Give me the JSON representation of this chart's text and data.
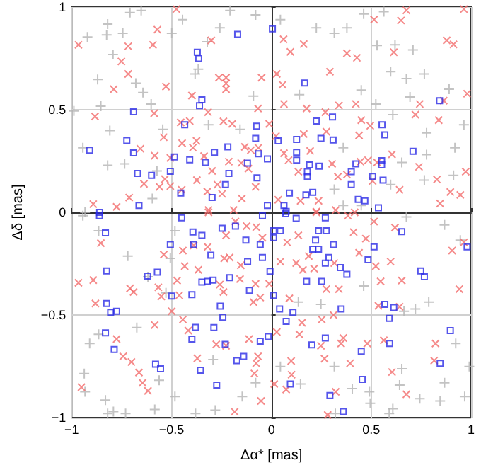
{
  "chart_data": {
    "type": "scatter",
    "xlabel": "Δα* [mas]",
    "ylabel": "Δδ [mas]",
    "xlim": [
      -1,
      1
    ],
    "ylim": [
      -1,
      1
    ],
    "xticks": [
      {
        "value": -1,
        "label": "−1"
      },
      {
        "value": -0.5,
        "label": "−0.5"
      },
      0,
      0.5,
      1
    ],
    "yticks": [
      {
        "value": -1,
        "label": "−1"
      },
      {
        "value": -0.5,
        "label": "−0.5"
      },
      0,
      0.5,
      1
    ],
    "grid": true,
    "series": [
      {
        "color": "#b4b4b4",
        "marker": "plus",
        "x": [
          -0.708,
          -0.652,
          -0.82,
          -0.921,
          -0.825,
          -0.744,
          -0.793,
          -0.87,
          -0.679,
          -0.643,
          -0.602,
          -0.854,
          -0.989,
          -0.499,
          -0.445,
          -0.366,
          -0.382,
          -0.321,
          -0.258,
          -0.207,
          -0.079,
          -0.09,
          -0.809,
          -0.944,
          -0.82,
          -0.735,
          -0.573,
          -0.544,
          -0.157,
          -0.315,
          -0.596,
          -0.933,
          0.045,
          0.225,
          0.315,
          0.378,
          0.462,
          0.563,
          0.529,
          0.619,
          0.709,
          0.597,
          0.676,
          0.766,
          0.89,
          0.14,
          0.45,
          0.694,
          0.523,
          0.608,
          0.964,
          0.777,
          0.653,
          0.36,
          0.919,
          0.777,
          0.766,
          0.912,
          0.597,
          0.315,
          0.45,
          0.36,
          -0.944,
          -0.865,
          -0.719,
          -0.618,
          -0.528,
          -0.483,
          -0.506,
          -0.674,
          -0.865,
          -0.91,
          -0.937,
          -0.933,
          -0.831,
          -0.791,
          -0.584,
          -0.483,
          -0.562,
          -0.292,
          -0.146,
          -0.079,
          -0.281,
          0.676,
          0.867,
          0.946,
          0.788,
          0.721,
          0.664,
          0.462,
          0.248,
          0.135,
          0.045,
          0.146,
          0.315,
          0.405,
          0.495,
          0.608,
          0.642,
          0.653,
          0.743,
          0.845,
          0.968,
          0.867,
          0.991,
          0.491,
          0.923,
          -0.82,
          -0.73,
          -0.38,
          0.32,
          0.59
        ],
        "values": [
          0.973,
          0.984,
          0.917,
          0.854,
          0.865,
          0.872,
          0.769,
          0.647,
          0.629,
          0.584,
          0.528,
          0.517,
          0.494,
          0.872,
          0.939,
          0.697,
          0.674,
          0.831,
          0.899,
          0.984,
          0.962,
          0.566,
          0.398,
          0.315,
          0.229,
          0.236,
          0.202,
          0.404,
          0.404,
          0.427,
          0.067,
          0,
          0.939,
          0.899,
          0.872,
          0.899,
          0.966,
          0.978,
          0.813,
          0.816,
          0.791,
          0.685,
          0.652,
          0.674,
          0.6,
          0.573,
          0.596,
          0.562,
          0.528,
          0.476,
          0.427,
          0.387,
          0.243,
          0.315,
          0.315,
          0.281,
          0.157,
          0.18,
          0.135,
          0.112,
          0.034,
          0.034,
          -0.016,
          -0.09,
          -0.213,
          -0.314,
          -0.392,
          -0.09,
          -0.224,
          -0.561,
          -0.594,
          -0.639,
          -0.785,
          -0.874,
          -0.915,
          -0.971,
          -0.96,
          -0.897,
          -0.818,
          -0.717,
          -0.897,
          -0.83,
          -0.964,
          -0.022,
          -0.061,
          -0.135,
          -0.437,
          -0.471,
          -0.482,
          -0.359,
          -0.448,
          -0.437,
          -0.751,
          -0.836,
          -0.751,
          -0.859,
          -0.93,
          -0.957,
          -0.841,
          -0.762,
          -0.908,
          -0.919,
          -0.897,
          -0.83,
          -0.751,
          -0.874,
          -0.639,
          -0.98,
          -0.98,
          -0.98,
          -0.98,
          -0.98
        ]
      },
      {
        "color": "#f26d6d",
        "marker": "cross",
        "x": [
          -0.476,
          -0.571,
          -0.966,
          -0.717,
          -0.593,
          -0.751,
          -0.717,
          -0.789,
          -0.528,
          -0.301,
          -0.227,
          -0.227,
          -0.227,
          -0.263,
          -0.049,
          -0.398,
          -0.067,
          -0.883,
          -0.587,
          -0.317,
          -0.454,
          -0.409,
          -0.24,
          -0.196,
          -0.011,
          -0.539,
          -0.447,
          -0.375,
          -0.656,
          -0.584,
          -0.393,
          -0.506,
          -0.337,
          -0.213,
          -0.151,
          -0.133,
          -0.103,
          -0.065,
          -0.115,
          -0.297,
          -0.373,
          -0.638,
          -0.56,
          -0.533,
          -0.506,
          -0.712,
          -0.449,
          -0.27,
          -0.321,
          -0.247,
          -0.148,
          -0.079,
          -0.892,
          -0.775,
          -0.315,
          -0.189,
          0.676,
          0.964,
          0.514,
          0.649,
          0.061,
          0.162,
          0.095,
          0.378,
          0.428,
          0.613,
          0.878,
          0.912,
          0.027,
          0.293,
          0.056,
          0.98,
          0.063,
          0.176,
          0.338,
          0.423,
          0.743,
          0.863,
          0.27,
          0.45,
          0.495,
          0.721,
          0.838,
          0.439,
          0.275,
          0.162,
          0.023,
          0.604,
          0.194,
          0.063,
          0.086,
          0.446,
          0.484,
          0.529,
          0.304,
          0.378,
          0.333,
          0.135,
          0.739,
          0.507,
          0.829,
          0.973,
          0.642,
          0.896,
          0.946,
          0.845,
          0.034,
          0.146,
          0.236,
          0.322,
          0.417,
          0.225,
          -0.854,
          -0.966,
          -0.892,
          -0.881,
          -0.708,
          -0.69,
          -0.566,
          -0.551,
          -0.539,
          -0.443,
          -0.434,
          -0.389,
          -0.319,
          -0.366,
          -0.472,
          -0.461,
          -0.499,
          -0.443,
          -0.584,
          -0.416,
          -0.236,
          -0.209,
          -0.153,
          -0.258,
          -0.24,
          -0.157,
          -0.079,
          -0.09,
          -0.056,
          -0.18,
          -0.124,
          -0.076,
          -0.045,
          -0.227,
          -0.315,
          -0.775,
          -0.742,
          -0.701,
          -0.663,
          -0.645,
          -0.618,
          -0.951,
          -0.276,
          -0.227,
          -0.371,
          -0.112,
          -0.067,
          -0.076,
          -0.085,
          -0.052,
          -0.184,
          -0.011,
          0.225,
          0.383,
          0.514,
          0.619,
          0.412,
          0.473,
          0.079,
          0.135,
          0.187,
          0.124,
          0.045,
          0.158,
          0.214,
          0.315,
          0.439,
          0.523,
          0.547,
          0.597,
          0.653,
          0.905,
          0.964,
          0.941,
          0.09,
          0.275,
          0.338,
          0.536,
          0.642,
          0.153,
          0.252,
          0.311,
          0.027,
          0.14,
          0.248,
          0.349,
          0.36,
          0.48,
          0.563,
          0.822,
          0.099,
          0.266,
          0.394,
          0.604,
          0.815,
          0.101,
          0.074,
          0.322,
          0.676,
          0.282,
          0.014
        ],
        "values": [
          0.99,
          0.89,
          0.816,
          0.809,
          0.816,
          0.735,
          0.674,
          0.6,
          0.613,
          0.838,
          0.656,
          0.629,
          0.6,
          0.656,
          0.656,
          0.569,
          0.506,
          0.467,
          0.483,
          0.488,
          0.438,
          0.445,
          0.443,
          0.431,
          0.431,
          0.366,
          0.337,
          0.348,
          0.31,
          0.276,
          0.315,
          0.265,
          0.274,
          0.247,
          0.24,
          0.319,
          0.303,
          0.315,
          0.213,
          0.202,
          0.157,
          0.139,
          0.124,
          0.162,
          0.128,
          0.072,
          0.11,
          0.135,
          0.101,
          0.09,
          0.067,
          0.124,
          0.04,
          0.027,
          0.011,
          0.011,
          0.984,
          0.99,
          0.939,
          0.935,
          0.843,
          0.82,
          0.782,
          0.775,
          0.753,
          0.78,
          0.838,
          0.818,
          0.674,
          0.685,
          0.622,
          0.578,
          0.528,
          0.506,
          0.521,
          0.528,
          0.528,
          0.544,
          0.488,
          0.449,
          0.422,
          0.476,
          0.449,
          0.375,
          0.393,
          0.382,
          0.371,
          0.283,
          0.299,
          0.288,
          0.254,
          0.247,
          0.254,
          0.243,
          0.236,
          0.184,
          0.173,
          0.198,
          0.222,
          0.153,
          0.16,
          0.198,
          0.11,
          0.099,
          0.085,
          0.043,
          0.061,
          0.056,
          0.056,
          0.011,
          0,
          0.004,
          -0.15,
          -0.343,
          -0.33,
          -0.444,
          -0.37,
          -0.388,
          -0.365,
          -0.41,
          -0.206,
          -0.186,
          -0.262,
          -0.161,
          -0.168,
          -0.28,
          -0.332,
          -0.404,
          -0.482,
          -0.522,
          -0.549,
          -0.576,
          -0.224,
          -0.22,
          -0.258,
          -0.352,
          -0.388,
          -0.325,
          -0.348,
          -0.437,
          -0.415,
          -0.045,
          -0.067,
          -0.072,
          -0.123,
          -0.112,
          0,
          -0.617,
          -0.702,
          -0.729,
          -0.78,
          -0.83,
          -0.87,
          -0.852,
          -0.643,
          -0.65,
          -0.711,
          -0.617,
          -0.702,
          -0.735,
          -0.785,
          -0.919,
          -0.971,
          -0.348,
          0,
          -0.016,
          -0.045,
          -0.074,
          -0.096,
          -0.128,
          -0.146,
          -0.112,
          -0.213,
          -0.247,
          -0.24,
          -0.28,
          -0.274,
          -0.247,
          -0.197,
          -0.262,
          -0.336,
          -0.24,
          -0.332,
          -0.186,
          -0.146,
          -0.374,
          -0.419,
          -0.374,
          -0.374,
          -0.455,
          -0.46,
          -0.538,
          -0.522,
          -0.5,
          -0.583,
          -0.594,
          -0.65,
          -0.639,
          -0.612,
          -0.639,
          -0.623,
          -0.639,
          -0.724,
          -0.713,
          -0.735,
          -0.778,
          -0.722,
          -0.791,
          -0.863,
          -0.874,
          -0.886,
          -0.987,
          -0.836
        ]
      },
      {
        "color": "#2a2ae6",
        "marker": "square",
        "x": [
          -0.169,
          -0.371,
          -0.364,
          -0.348,
          -0.36,
          -0.69,
          -0.434,
          -0.91,
          -0.724,
          -0.69,
          -0.485,
          -0.409,
          -0.33,
          -0.285,
          -0.218,
          -0.074,
          -0.079,
          -0.065,
          -0.12,
          -0.02,
          -0.67,
          -0.6,
          -0.506,
          -0.213,
          -0.23,
          -0.297,
          -0.454,
          -0.663,
          -0.072,
          -0.02,
          -0.86,
          0.005,
          0.167,
          0.842,
          0.225,
          0.306,
          0.554,
          0.568,
          0.126,
          0.034,
          0.248,
          0.309,
          0.126,
          0.126,
          0.709,
          0.191,
          0.239,
          0.18,
          0.18,
          0.552,
          0.552,
          0.423,
          0.4,
          0.507,
          0.559,
          0.4,
          0.09,
          0.173,
          0.207,
          0.063,
          0.435,
          0.468,
          0.536,
          0.074,
          -0.861,
          -0.831,
          -0.449,
          -0.393,
          -0.348,
          -0.247,
          -0.18,
          -0.045,
          -0.506,
          -0.389,
          -0.303,
          -0.128,
          -0.056,
          -0.045,
          -0.119,
          -0.825,
          -0.62,
          -0.571,
          -0.321,
          -0.292,
          -0.348,
          -0.209,
          -0.11,
          -0.007,
          -0.499,
          -0.398,
          -0.825,
          -0.805,
          -0.775,
          -0.256,
          -0.243,
          -0.38,
          -0.831,
          -0.787,
          -0.398,
          -0.288,
          -0.231,
          -0.173,
          -0.139,
          -0.056,
          -0.58,
          -0.555,
          -0.355,
          -0.274,
          -0.016,
          0.072,
          0.124,
          0.27,
          0.011,
          0.045,
          0.011,
          0.236,
          0.275,
          0.221,
          0.311,
          0.236,
          0.207,
          0.288,
          0.27,
          0.345,
          0.378,
          0.514,
          0.484,
          0.176,
          0.252,
          0.653,
          0.748,
          0.766,
          0.98,
          0.011,
          0.041,
          0.108,
          0.349,
          0.568,
          0.613,
          0.59,
          0.074,
          0.27,
          0.203,
          0.45,
          0.592,
          0.845,
          0.896,
          0.455,
          0.095,
          0.293,
          0.36
        ],
        "values": [
          0.867,
          0.78,
          0.75,
          0.548,
          0.52,
          0.49,
          0.427,
          0.303,
          0.35,
          0.29,
          0.27,
          0.256,
          0.243,
          0.292,
          0.319,
          0.42,
          0.36,
          0.285,
          0.24,
          0.26,
          0.19,
          0.18,
          0.2,
          0.19,
          0.135,
          0.072,
          0.094,
          0.034,
          0.168,
          0.034,
          0,
          0.894,
          0.63,
          0.544,
          0.445,
          0.465,
          0.427,
          0.378,
          0.355,
          0.348,
          0.36,
          0.353,
          0.292,
          0.254,
          0.297,
          0.231,
          0.225,
          0.198,
          0.175,
          0.252,
          0.231,
          0.236,
          0.198,
          0.175,
          0.157,
          0.135,
          0.094,
          0.085,
          0.097,
          0.034,
          0.063,
          0.056,
          0.022,
          0.004,
          -0.016,
          -0.1,
          -0.027,
          -0.096,
          -0.112,
          -0.078,
          -0.067,
          -0.016,
          -0.157,
          -0.157,
          -0.209,
          -0.135,
          -0.157,
          -0.22,
          -0.24,
          -0.285,
          -0.31,
          -0.291,
          -0.336,
          -0.33,
          -0.34,
          -0.318,
          -0.38,
          -0.287,
          -0.408,
          -0.401,
          -0.444,
          -0.487,
          -0.482,
          -0.457,
          -0.511,
          -0.56,
          -0.587,
          -0.668,
          -0.617,
          -0.561,
          -0.643,
          -0.722,
          -0.702,
          -0.628,
          -0.74,
          -0.762,
          -0.769,
          -0.841,
          -0.605,
          -0.007,
          -0.029,
          -0.027,
          -0.09,
          -0.09,
          -0.123,
          -0.09,
          -0.09,
          -0.135,
          -0.157,
          -0.179,
          -0.179,
          -0.22,
          -0.247,
          -0.269,
          -0.302,
          -0.168,
          -0.231,
          -0.336,
          -0.336,
          -0.094,
          -0.285,
          -0.314,
          -0.168,
          -0.404,
          -0.471,
          -0.487,
          -0.471,
          -0.448,
          -0.464,
          -0.516,
          -0.531,
          -0.612,
          -0.646,
          -0.677,
          -0.639,
          -0.735,
          -0.576,
          -0.814,
          -0.836,
          -0.892,
          -0.971
        ]
      }
    ]
  }
}
